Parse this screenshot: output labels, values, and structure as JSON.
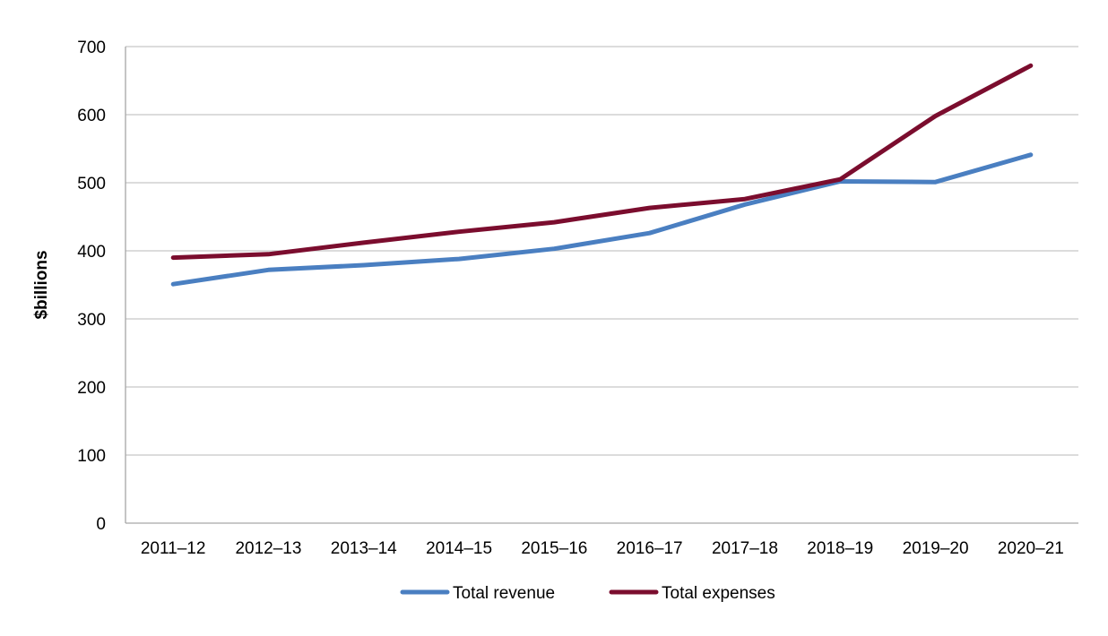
{
  "chart_data": {
    "type": "line",
    "title": "",
    "xlabel": "",
    "ylabel": "$billions",
    "ylim": [
      0,
      700
    ],
    "yticks": [
      0,
      100,
      200,
      300,
      400,
      500,
      600,
      700
    ],
    "grid": true,
    "legend_position": "bottom",
    "categories": [
      "2011–12",
      "2012–13",
      "2013–14",
      "2014–15",
      "2015–16",
      "2016–17",
      "2017–18",
      "2018–19",
      "2019–20",
      "2020–21"
    ],
    "series": [
      {
        "name": "Total revenue",
        "color": "#4a7fc1",
        "values": [
          351,
          372,
          379,
          388,
          403,
          426,
          468,
          502,
          501,
          541
        ]
      },
      {
        "name": "Total expenses",
        "color": "#7b0d2e",
        "values": [
          390,
          395,
          412,
          428,
          442,
          463,
          476,
          505,
          598,
          672
        ]
      }
    ]
  }
}
